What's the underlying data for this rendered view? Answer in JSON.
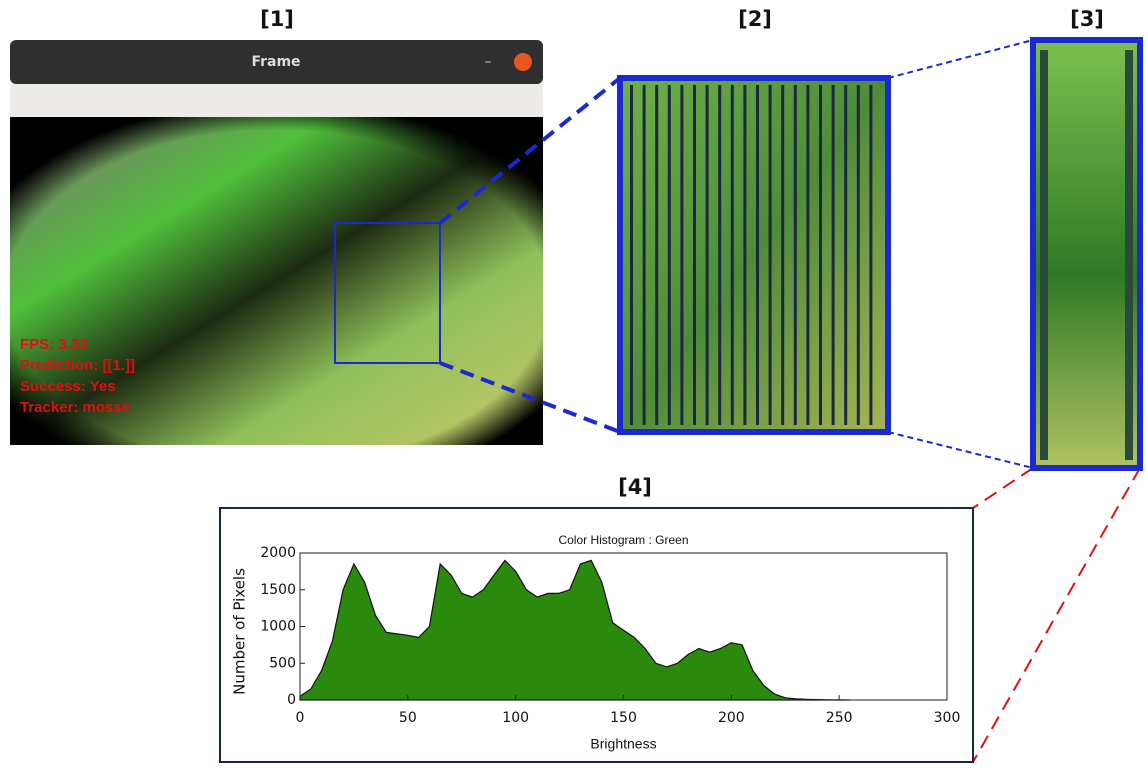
{
  "panels": [
    "[1]",
    "[2]",
    "[3]",
    "[4]"
  ],
  "window": {
    "title": "Frame",
    "overlay": [
      "FPS: 3.33",
      "Prediction: [[1.]]",
      "Success: Yes",
      "Tracker: mosse"
    ]
  },
  "chart_data": {
    "type": "area",
    "title": "Color Histogram : Green",
    "x_label": "Brightness",
    "y_label": "Number of Pixels",
    "color": "#2a8a0e",
    "x": [
      0,
      5,
      10,
      15,
      20,
      25,
      30,
      35,
      40,
      45,
      50,
      55,
      60,
      65,
      70,
      75,
      80,
      85,
      90,
      95,
      100,
      105,
      110,
      115,
      120,
      125,
      130,
      135,
      140,
      145,
      150,
      155,
      160,
      165,
      170,
      175,
      180,
      185,
      190,
      195,
      200,
      205,
      210,
      215,
      220,
      225,
      230,
      235,
      240,
      245,
      250,
      255
    ],
    "values": [
      50,
      150,
      400,
      800,
      1500,
      1850,
      1600,
      1150,
      920,
      900,
      880,
      850,
      1000,
      1850,
      1700,
      1450,
      1400,
      1500,
      1700,
      1900,
      1750,
      1500,
      1400,
      1450,
      1450,
      1500,
      1850,
      1900,
      1600,
      1050,
      950,
      850,
      700,
      500,
      450,
      500,
      620,
      700,
      650,
      700,
      780,
      750,
      400,
      200,
      80,
      30,
      15,
      8,
      5,
      3,
      2,
      0
    ],
    "xlim": [
      0,
      300
    ],
    "xticks": [
      0,
      50,
      100,
      150,
      200,
      250,
      300
    ],
    "ylim": [
      0,
      2000
    ],
    "yticks": [
      0,
      500,
      1000,
      1500,
      2000
    ]
  }
}
